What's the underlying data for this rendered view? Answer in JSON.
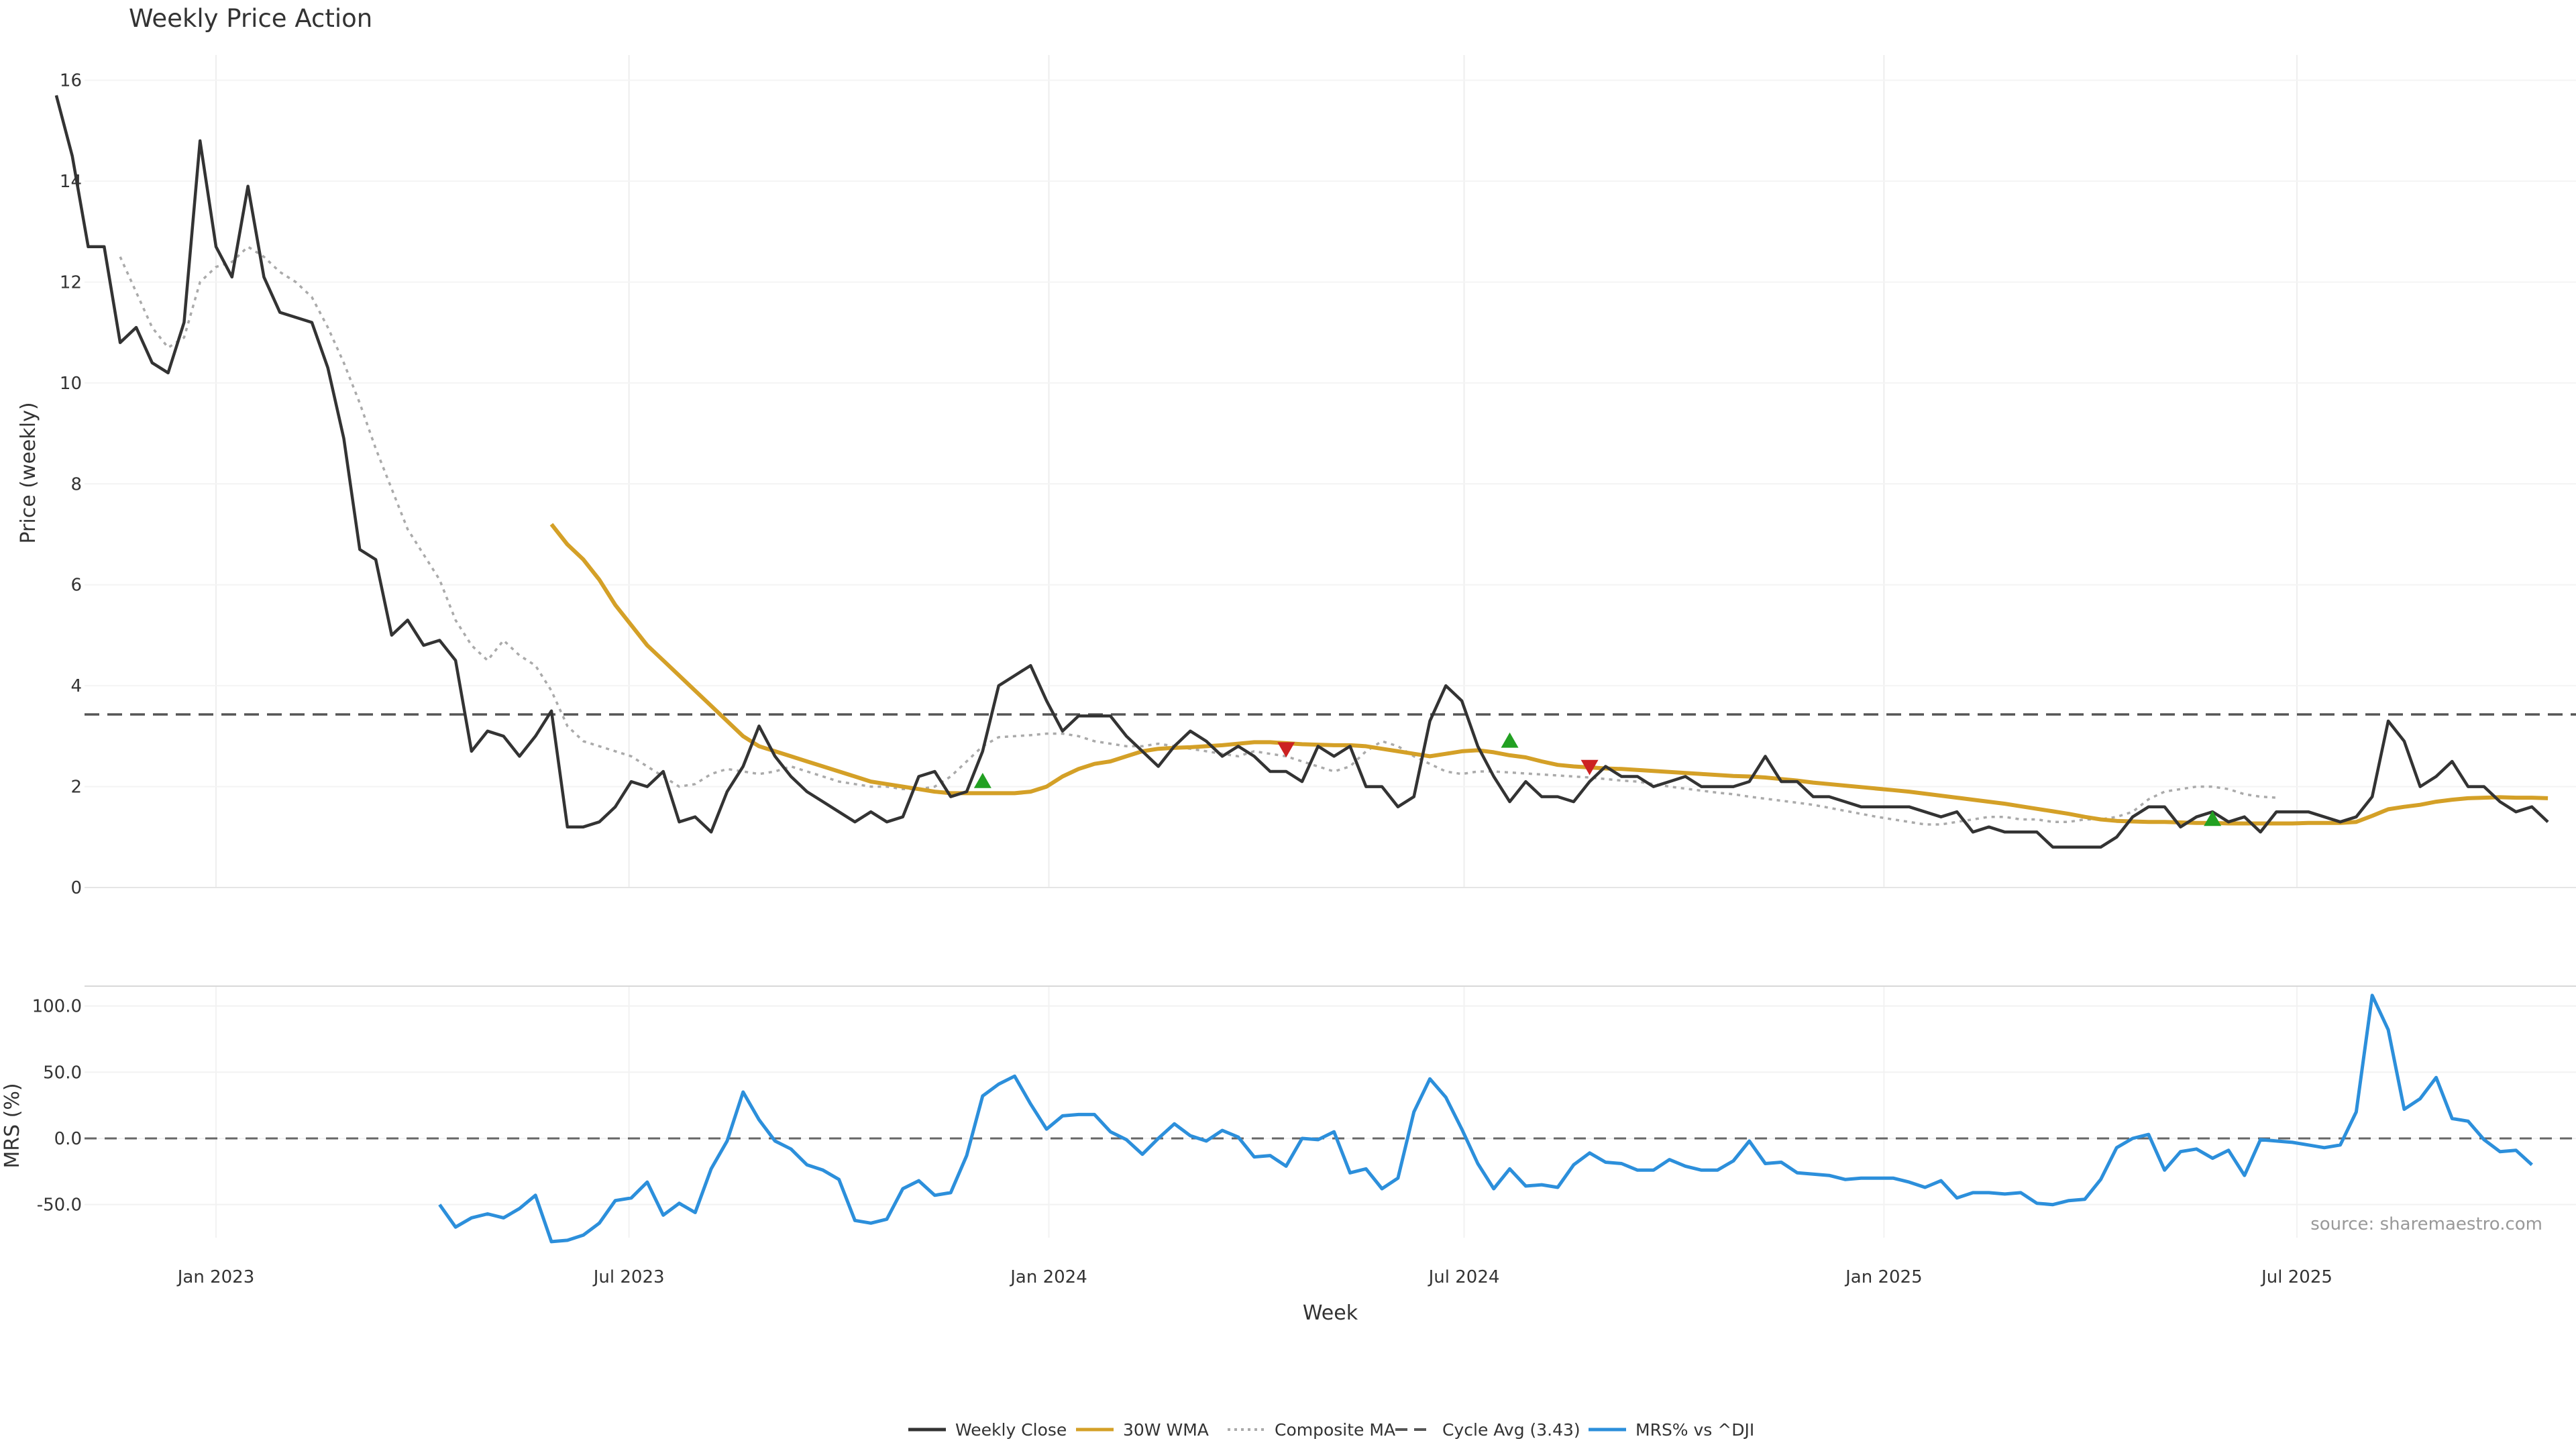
{
  "chart_data": {
    "type": "line",
    "title": "Weekly Price Action",
    "source": "source: sharemaestro.com",
    "x_axis": {
      "label": "Week",
      "ticks": [
        {
          "date": "2023-01-01",
          "label": "Jan 2023"
        },
        {
          "date": "2023-07-01",
          "label": "Jul 2023"
        },
        {
          "date": "2024-01-01",
          "label": "Jan 2024"
        },
        {
          "date": "2024-07-01",
          "label": "Jul 2024"
        },
        {
          "date": "2025-01-01",
          "label": "Jan 2025"
        },
        {
          "date": "2025-07-01",
          "label": "Jul 2025"
        }
      ]
    },
    "price_panel": {
      "ylabel": "Price (weekly)",
      "ylim": [
        0,
        16.5
      ],
      "yticks": [
        0,
        2,
        4,
        6,
        8,
        10,
        12,
        14,
        16
      ],
      "cycle_avg": 3.43
    },
    "mrs_panel": {
      "ylabel": "MRS (%)",
      "ylim": [
        -75,
        115
      ],
      "yticks": [
        -50,
        0,
        50,
        100
      ],
      "ytick_labels": [
        "-50.0",
        "0.0",
        "50.0",
        "100.0"
      ]
    },
    "legend": [
      {
        "key": "close",
        "label": "Weekly Close",
        "color": "#333333",
        "style": "solid"
      },
      {
        "key": "wma",
        "label": "30W WMA",
        "color": "#D4A027",
        "style": "solid"
      },
      {
        "key": "composite",
        "label": "Composite MA",
        "color": "#AAAAAA",
        "style": "dotted"
      },
      {
        "key": "cycle",
        "label": "Cycle Avg (3.43)",
        "color": "#555555",
        "style": "dashed"
      },
      {
        "key": "mrs",
        "label": "MRS% vs ^DJI",
        "color": "#2C8FDB",
        "style": "solid"
      }
    ],
    "series": {
      "close": {
        "name": "Weekly Close",
        "start": "2022-10-23",
        "step_days": 7,
        "values": [
          15.7,
          14.5,
          12.7,
          12.7,
          10.8,
          11.1,
          10.4,
          10.2,
          11.2,
          14.8,
          12.7,
          12.1,
          13.9,
          12.1,
          11.4,
          11.3,
          11.2,
          10.3,
          8.9,
          6.7,
          6.5,
          5.0,
          5.3,
          4.8,
          4.9,
          4.5,
          2.7,
          3.1,
          3.0,
          2.6,
          3.0,
          3.5,
          1.2,
          1.2,
          1.3,
          1.6,
          2.1,
          2.0,
          2.3,
          1.3,
          1.4,
          1.1,
          1.9,
          2.4,
          3.2,
          2.6,
          2.2,
          1.9,
          1.7,
          1.5,
          1.3,
          1.5,
          1.3,
          1.4,
          2.2,
          2.3,
          1.8,
          1.9,
          2.7,
          4.0,
          4.2,
          4.4,
          3.7,
          3.1,
          3.4,
          3.4,
          3.4,
          3.0,
          2.7,
          2.4,
          2.8,
          3.1,
          2.9,
          2.6,
          2.8,
          2.6,
          2.3,
          2.3,
          2.1,
          2.8,
          2.6,
          2.8,
          2.0,
          2.0,
          1.6,
          1.8,
          3.3,
          4.0,
          3.7,
          2.8,
          2.2,
          1.7,
          2.1,
          1.8,
          1.8,
          1.7,
          2.1,
          2.4,
          2.2,
          2.2,
          2.0,
          2.1,
          2.2,
          2.0,
          2.0,
          2.0,
          2.1,
          2.6,
          2.1,
          2.1,
          1.8,
          1.8,
          1.7,
          1.6,
          1.6,
          1.6,
          1.6,
          1.5,
          1.4,
          1.5,
          1.1,
          1.2,
          1.1,
          1.1,
          1.1,
          0.8,
          0.8,
          0.8,
          0.8,
          1.0,
          1.4,
          1.6,
          1.6,
          1.2,
          1.4,
          1.5,
          1.3,
          1.4,
          1.1,
          1.5,
          1.5,
          1.5,
          1.4,
          1.3,
          1.4,
          1.8,
          3.3,
          2.9,
          2.0,
          2.2,
          2.5,
          2.0,
          2.0,
          1.7,
          1.5,
          1.6,
          1.3
        ]
      },
      "wma": {
        "name": "30W WMA",
        "start": "2023-05-28",
        "step_days": 7,
        "values": [
          7.2,
          6.8,
          6.5,
          6.1,
          5.6,
          5.2,
          4.8,
          4.5,
          4.2,
          3.9,
          3.6,
          3.3,
          3.0,
          2.8,
          2.7,
          2.6,
          2.5,
          2.4,
          2.3,
          2.2,
          2.1,
          2.05,
          2.0,
          1.95,
          1.9,
          1.87,
          1.87,
          1.87,
          1.87,
          1.87,
          1.9,
          2.0,
          2.2,
          2.35,
          2.45,
          2.5,
          2.6,
          2.7,
          2.75,
          2.77,
          2.78,
          2.8,
          2.82,
          2.85,
          2.88,
          2.88,
          2.86,
          2.84,
          2.83,
          2.82,
          2.82,
          2.8,
          2.75,
          2.7,
          2.65,
          2.6,
          2.65,
          2.7,
          2.72,
          2.68,
          2.62,
          2.58,
          2.5,
          2.43,
          2.4,
          2.38,
          2.36,
          2.35,
          2.33,
          2.31,
          2.29,
          2.27,
          2.25,
          2.23,
          2.21,
          2.2,
          2.18,
          2.15,
          2.12,
          2.08,
          2.05,
          2.02,
          1.99,
          1.96,
          1.93,
          1.9,
          1.86,
          1.82,
          1.78,
          1.74,
          1.7,
          1.66,
          1.61,
          1.56,
          1.51,
          1.46,
          1.4,
          1.35,
          1.32,
          1.31,
          1.3,
          1.3,
          1.29,
          1.28,
          1.28,
          1.27,
          1.27,
          1.27,
          1.27,
          1.27,
          1.28,
          1.28,
          1.28,
          1.3,
          1.42,
          1.55,
          1.6,
          1.64,
          1.7,
          1.74,
          1.77,
          1.78,
          1.79,
          1.78,
          1.78,
          1.77
        ]
      },
      "composite": {
        "name": "Composite MA",
        "start": "2022-11-20",
        "step_days": 7,
        "values": [
          12.5,
          11.8,
          11.1,
          10.7,
          10.9,
          12.0,
          12.3,
          12.4,
          12.7,
          12.5,
          12.2,
          12.0,
          11.7,
          11.1,
          10.4,
          9.6,
          8.7,
          7.9,
          7.1,
          6.6,
          6.1,
          5.3,
          4.8,
          4.5,
          4.9,
          4.6,
          4.4,
          3.9,
          3.2,
          2.9,
          2.8,
          2.7,
          2.6,
          2.4,
          2.2,
          2.0,
          2.05,
          2.25,
          2.35,
          2.3,
          2.25,
          2.3,
          2.4,
          2.3,
          2.2,
          2.1,
          2.05,
          2.0,
          2.0,
          1.95,
          1.95,
          2.0,
          2.2,
          2.5,
          2.8,
          2.98,
          3.0,
          3.02,
          3.05,
          3.05,
          3.0,
          2.9,
          2.85,
          2.8,
          2.8,
          2.85,
          2.8,
          2.75,
          2.7,
          2.65,
          2.6,
          2.7,
          2.65,
          2.6,
          2.5,
          2.4,
          2.3,
          2.4,
          2.7,
          2.9,
          2.8,
          2.6,
          2.45,
          2.3,
          2.25,
          2.3,
          2.3,
          2.28,
          2.26,
          2.24,
          2.22,
          2.2,
          2.18,
          2.15,
          2.12,
          2.1,
          2.05,
          2.0,
          1.96,
          1.92,
          1.88,
          1.85,
          1.8,
          1.76,
          1.72,
          1.68,
          1.64,
          1.58,
          1.52,
          1.46,
          1.4,
          1.35,
          1.3,
          1.25,
          1.25,
          1.3,
          1.35,
          1.4,
          1.4,
          1.35,
          1.35,
          1.3,
          1.3,
          1.35,
          1.35,
          1.4,
          1.5,
          1.75,
          1.9,
          1.95,
          2.0,
          2.0,
          1.95,
          1.85,
          1.8,
          1.78
        ]
      },
      "mrs": {
        "name": "MRS% vs ^DJI",
        "start": "2023-04-09",
        "step_days": 7,
        "values": [
          -50,
          -67,
          -60,
          -57,
          -60,
          -53,
          -43,
          -78,
          -77,
          -73,
          -64,
          -47,
          -45,
          -33,
          -58,
          -49,
          -56,
          -23,
          -2,
          35,
          14,
          -2,
          -8,
          -20,
          -24,
          -31,
          -62,
          -64,
          -61,
          -38,
          -32,
          -43,
          -41,
          -13,
          32,
          41,
          47,
          26,
          7,
          17,
          18,
          18,
          5,
          -1,
          -12,
          0,
          11,
          2,
          -2,
          6,
          1,
          -14,
          -13,
          -21,
          0,
          -1,
          5,
          -26,
          -23,
          -38,
          -30,
          20,
          45,
          31,
          7,
          -19,
          -38,
          -23,
          -36,
          -35,
          -37,
          -20,
          -11,
          -18,
          -19,
          -24,
          -24,
          -16,
          -21,
          -24,
          -24,
          -17,
          -2,
          -19,
          -18,
          -26,
          -27,
          -28,
          -31,
          -30,
          -30,
          -30,
          -33,
          -37,
          -32,
          -45,
          -41,
          -41,
          -42,
          -41,
          -49,
          -50,
          -47,
          -46,
          -31,
          -7,
          0,
          3,
          -24,
          -10,
          -8,
          -15,
          -9,
          -28,
          -1,
          -2,
          -3,
          -5,
          -7,
          -5,
          20,
          108,
          82,
          22,
          30,
          46,
          15,
          13,
          -1,
          -10,
          -9,
          -20
        ]
      }
    },
    "markers": [
      {
        "date": "2023-12-03",
        "value": 2.1,
        "type": "buy",
        "color": "#22A022"
      },
      {
        "date": "2024-04-14",
        "value": 2.75,
        "type": "sell",
        "color": "#CC2222"
      },
      {
        "date": "2024-07-21",
        "value": 2.9,
        "type": "buy",
        "color": "#22A022"
      },
      {
        "date": "2024-08-25",
        "value": 2.4,
        "type": "sell",
        "color": "#CC2222"
      },
      {
        "date": "2025-05-25",
        "value": 1.35,
        "type": "buy",
        "color": "#22A022"
      }
    ]
  }
}
